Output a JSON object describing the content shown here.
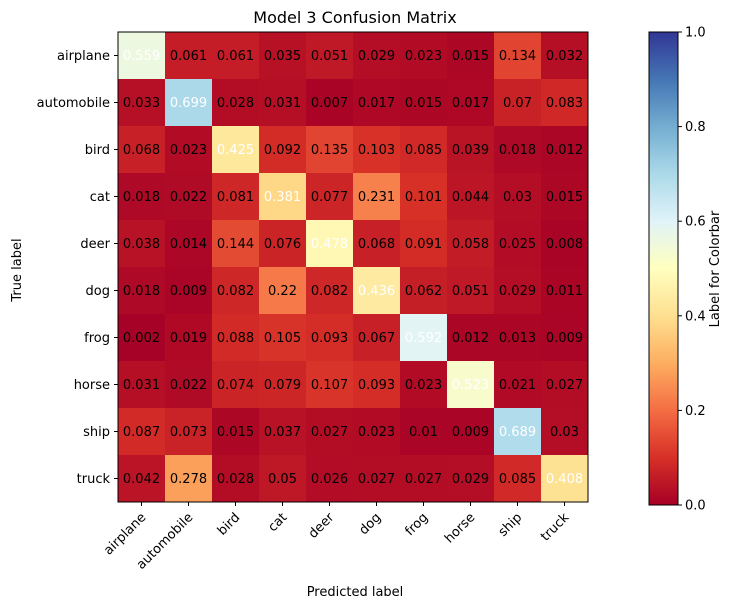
{
  "chart_data": {
    "type": "heatmap",
    "title": "Model 3 Confusion Matrix",
    "xlabel": "Predicted label",
    "ylabel": "True label",
    "x_categories": [
      "airplane",
      "automobile",
      "bird",
      "cat",
      "deer",
      "dog",
      "frog",
      "horse",
      "ship",
      "truck"
    ],
    "y_categories": [
      "airplane",
      "automobile",
      "bird",
      "cat",
      "deer",
      "dog",
      "frog",
      "horse",
      "ship",
      "truck"
    ],
    "values": [
      [
        0.559,
        0.061,
        0.061,
        0.035,
        0.051,
        0.029,
        0.023,
        0.015,
        0.134,
        0.032
      ],
      [
        0.033,
        0.699,
        0.028,
        0.031,
        0.007,
        0.017,
        0.015,
        0.017,
        0.07,
        0.083
      ],
      [
        0.068,
        0.023,
        0.425,
        0.092,
        0.135,
        0.103,
        0.085,
        0.039,
        0.018,
        0.012
      ],
      [
        0.018,
        0.022,
        0.081,
        0.381,
        0.077,
        0.231,
        0.101,
        0.044,
        0.03,
        0.015
      ],
      [
        0.038,
        0.014,
        0.144,
        0.076,
        0.478,
        0.068,
        0.091,
        0.058,
        0.025,
        0.008
      ],
      [
        0.018,
        0.009,
        0.082,
        0.22,
        0.082,
        0.436,
        0.062,
        0.051,
        0.029,
        0.011
      ],
      [
        0.002,
        0.019,
        0.088,
        0.105,
        0.093,
        0.067,
        0.592,
        0.012,
        0.013,
        0.009
      ],
      [
        0.031,
        0.022,
        0.074,
        0.079,
        0.107,
        0.093,
        0.023,
        0.523,
        0.021,
        0.027
      ],
      [
        0.087,
        0.073,
        0.015,
        0.037,
        0.027,
        0.023,
        0.01,
        0.009,
        0.689,
        0.03
      ],
      [
        0.042,
        0.278,
        0.028,
        0.05,
        0.026,
        0.027,
        0.027,
        0.029,
        0.085,
        0.408
      ]
    ],
    "colorbar": {
      "label": "Label for Colorbar",
      "range": [
        0,
        1
      ],
      "ticks": [
        "0.0",
        "0.2",
        "0.4",
        "0.6",
        "0.8",
        "1.0"
      ],
      "colormap": "RdYlBu",
      "colormap_stops": [
        "#a50026",
        "#d73027",
        "#f46d43",
        "#fdae61",
        "#fee090",
        "#ffffbf",
        "#e0f3f8",
        "#abd9e9",
        "#74add1",
        "#4575b4",
        "#313695"
      ]
    },
    "grid": false,
    "cell_text_threshold": 0.35
  }
}
